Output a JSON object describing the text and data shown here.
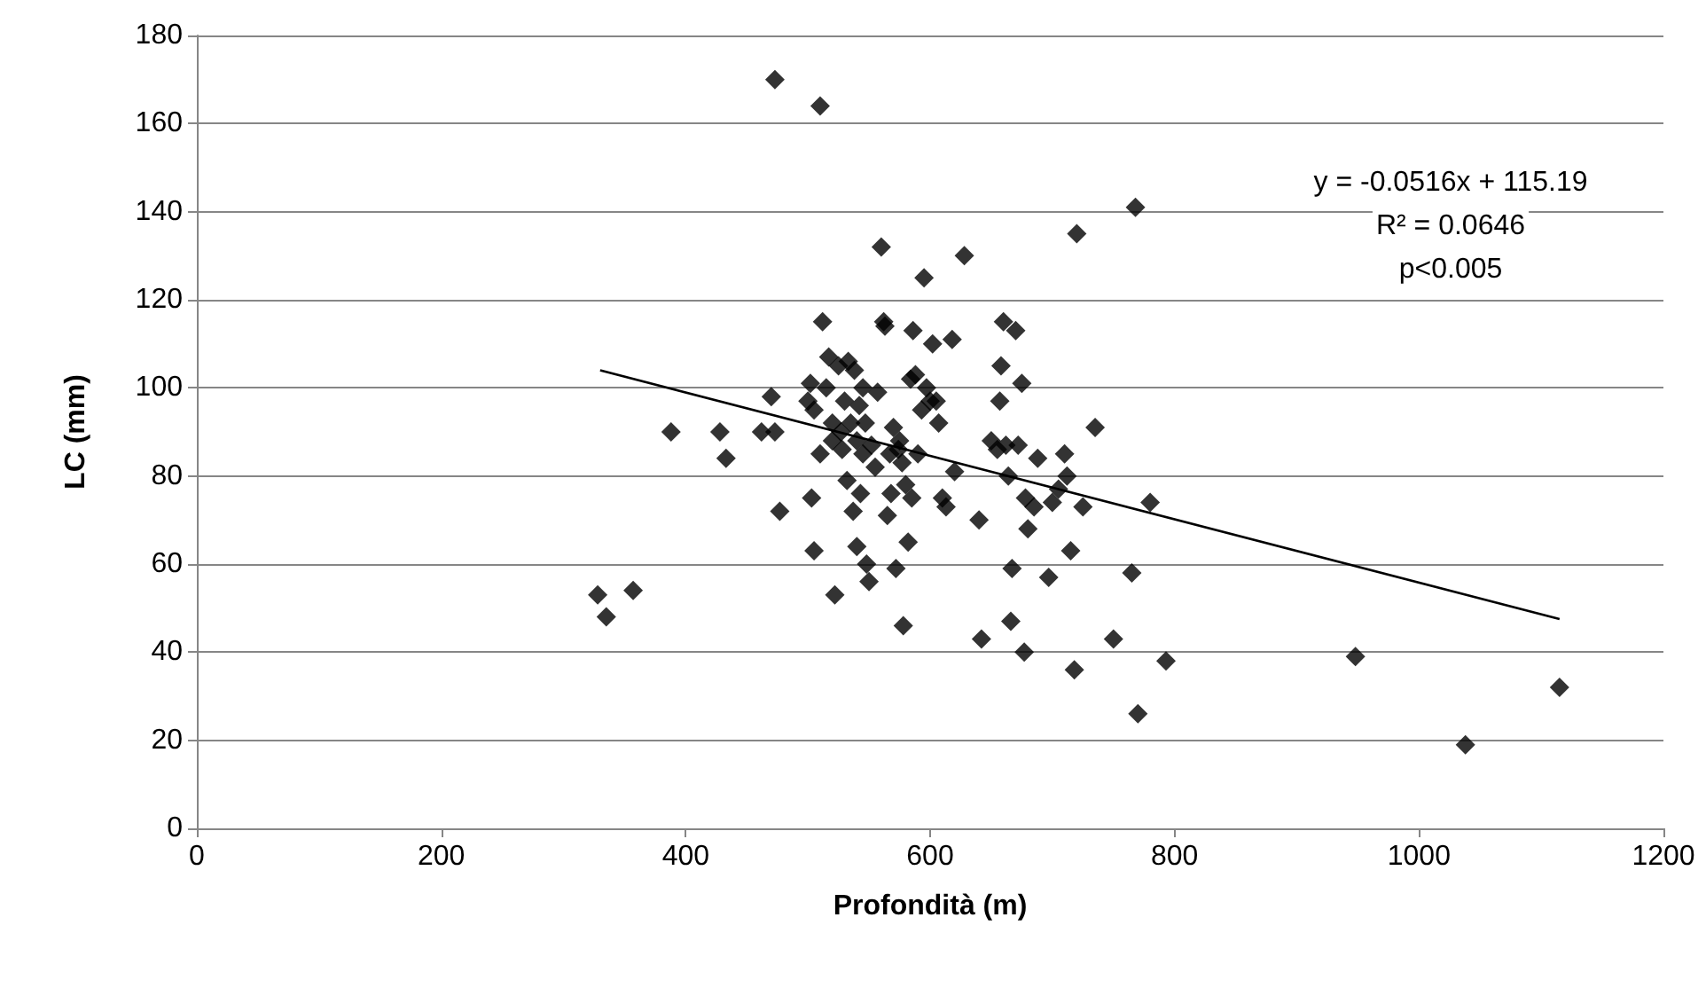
{
  "chart_data": {
    "type": "scatter",
    "xlabel": "Profondità (m)",
    "ylabel": "LC (mm)",
    "xlim": [
      0,
      1200
    ],
    "xticks": [
      0,
      200,
      400,
      600,
      800,
      1000,
      1200
    ],
    "ylim": [
      0,
      180
    ],
    "yticks": [
      0,
      20,
      40,
      60,
      80,
      100,
      120,
      140,
      160,
      180
    ],
    "grid": "y",
    "marker": "diamond",
    "annotations": [
      "y = -0.0516x + 115.19",
      "R² = 0.0646",
      "p<0.005"
    ],
    "series": [
      {
        "color": "#000000",
        "x": [
          328,
          335,
          357,
          388,
          428,
          433,
          462,
          470,
          473,
          477,
          473,
          510,
          500,
          502,
          505,
          503,
          505,
          510,
          512,
          515,
          517,
          520,
          520,
          522,
          525,
          527,
          528,
          530,
          532,
          533,
          535,
          537,
          538,
          540,
          540,
          542,
          543,
          545,
          545,
          547,
          548,
          550,
          552,
          555,
          557,
          560,
          562,
          563,
          565,
          567,
          568,
          570,
          572,
          574,
          575,
          577,
          578,
          580,
          582,
          584,
          585,
          586,
          588,
          590,
          593,
          595,
          597,
          600,
          602,
          605,
          607,
          610,
          613,
          618,
          620,
          628,
          640,
          642,
          650,
          655,
          657,
          658,
          660,
          662,
          664,
          666,
          667,
          670,
          672,
          675,
          677,
          678,
          680,
          685,
          688,
          697,
          700,
          705,
          710,
          712,
          715,
          718,
          720,
          725,
          735,
          750,
          765,
          768,
          770,
          780,
          793,
          948,
          1038,
          1115
        ],
        "values": [
          53,
          48,
          54,
          90,
          90,
          84,
          90,
          98,
          90,
          72,
          170,
          164,
          97,
          101,
          95,
          75,
          63,
          85,
          115,
          100,
          107,
          92,
          88,
          53,
          105,
          90,
          86,
          97,
          79,
          106,
          92,
          72,
          104,
          88,
          64,
          96,
          76,
          85,
          100,
          92,
          60,
          56,
          87,
          82,
          99,
          132,
          115,
          114,
          71,
          85,
          76,
          91,
          59,
          86,
          88,
          83,
          46,
          78,
          65,
          102,
          75,
          113,
          103,
          85,
          95,
          125,
          100,
          97,
          110,
          97,
          92,
          75,
          73,
          111,
          81,
          130,
          70,
          43,
          88,
          86,
          97,
          105,
          115,
          87,
          80,
          47,
          59,
          113,
          87,
          101,
          40,
          75,
          68,
          73,
          84,
          57,
          74,
          77,
          85,
          80,
          63,
          36,
          135,
          73,
          91,
          43,
          58,
          141,
          26,
          74,
          38,
          39,
          19,
          32
        ]
      },
      {
        "type": "line",
        "color": "#000000",
        "x": [
          330,
          1115
        ],
        "values": [
          104,
          47.5
        ],
        "marker": "none",
        "line_style": "solid"
      }
    ]
  }
}
